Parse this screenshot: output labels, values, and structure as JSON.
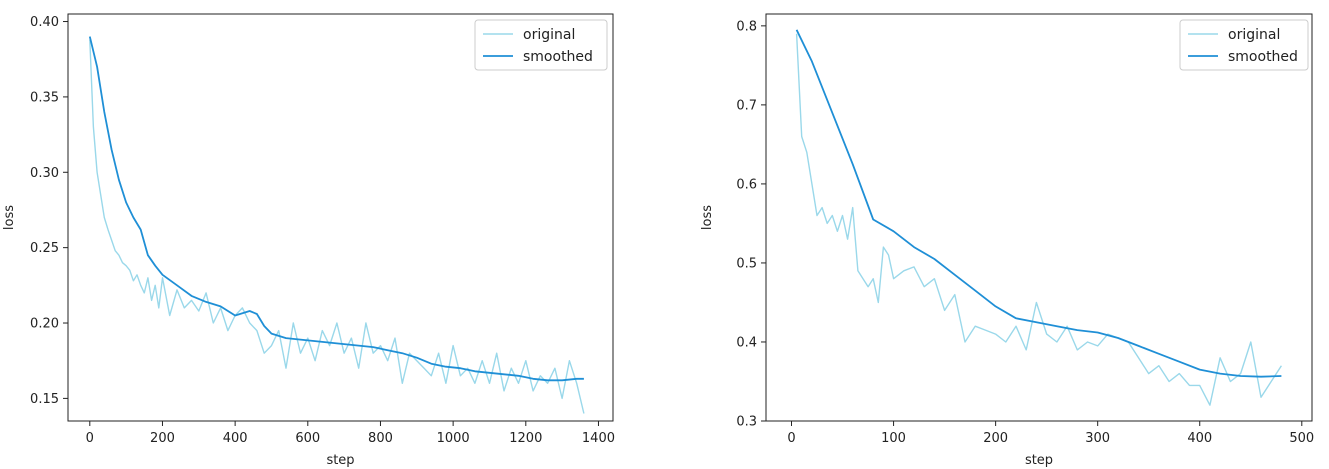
{
  "colors": {
    "original": "#9ad8ea",
    "smoothed": "#1f8fd6",
    "axis": "#222222"
  },
  "chart_data": [
    {
      "type": "line",
      "xlabel": "step",
      "ylabel": "loss",
      "xlim": [
        -60,
        1440
      ],
      "ylim": [
        0.135,
        0.405
      ],
      "xticks": [
        0,
        200,
        400,
        600,
        800,
        1000,
        1200,
        1400
      ],
      "yticks": [
        0.15,
        0.2,
        0.25,
        0.3,
        0.35,
        0.4
      ],
      "ytick_labels": [
        "0.15",
        "0.20",
        "0.25",
        "0.30",
        "0.35",
        "0.40"
      ],
      "grid": false,
      "legend": "top-right",
      "series": [
        {
          "name": "original",
          "color_key": "original",
          "x": [
            0,
            10,
            20,
            30,
            40,
            50,
            60,
            70,
            80,
            90,
            100,
            110,
            120,
            130,
            140,
            150,
            160,
            170,
            180,
            190,
            200,
            220,
            240,
            260,
            280,
            300,
            320,
            340,
            360,
            380,
            400,
            420,
            440,
            460,
            480,
            500,
            520,
            540,
            560,
            580,
            600,
            620,
            640,
            660,
            680,
            700,
            720,
            740,
            760,
            780,
            800,
            820,
            840,
            860,
            880,
            900,
            920,
            940,
            960,
            980,
            1000,
            1020,
            1040,
            1060,
            1080,
            1100,
            1120,
            1140,
            1160,
            1180,
            1200,
            1220,
            1240,
            1260,
            1280,
            1300,
            1320,
            1340,
            1360
          ],
          "values": [
            0.388,
            0.33,
            0.3,
            0.285,
            0.27,
            0.262,
            0.255,
            0.248,
            0.245,
            0.24,
            0.238,
            0.235,
            0.228,
            0.232,
            0.225,
            0.22,
            0.23,
            0.215,
            0.225,
            0.21,
            0.23,
            0.205,
            0.222,
            0.21,
            0.215,
            0.208,
            0.22,
            0.2,
            0.21,
            0.195,
            0.205,
            0.21,
            0.2,
            0.195,
            0.18,
            0.185,
            0.195,
            0.17,
            0.2,
            0.18,
            0.19,
            0.175,
            0.195,
            0.185,
            0.2,
            0.18,
            0.19,
            0.17,
            0.2,
            0.18,
            0.185,
            0.175,
            0.19,
            0.16,
            0.18,
            0.175,
            0.17,
            0.165,
            0.18,
            0.16,
            0.185,
            0.165,
            0.17,
            0.16,
            0.175,
            0.16,
            0.18,
            0.155,
            0.17,
            0.16,
            0.175,
            0.155,
            0.165,
            0.16,
            0.17,
            0.15,
            0.175,
            0.16,
            0.14
          ]
        },
        {
          "name": "smoothed",
          "color_key": "smoothed",
          "x": [
            0,
            20,
            40,
            60,
            80,
            100,
            120,
            140,
            160,
            180,
            200,
            240,
            280,
            320,
            360,
            400,
            440,
            460,
            480,
            500,
            540,
            580,
            620,
            660,
            700,
            740,
            780,
            820,
            860,
            900,
            940,
            980,
            1020,
            1060,
            1100,
            1140,
            1180,
            1220,
            1260,
            1300,
            1340,
            1360
          ],
          "values": [
            0.39,
            0.37,
            0.34,
            0.315,
            0.295,
            0.28,
            0.27,
            0.262,
            0.245,
            0.238,
            0.232,
            0.225,
            0.218,
            0.214,
            0.211,
            0.205,
            0.208,
            0.206,
            0.198,
            0.193,
            0.19,
            0.189,
            0.188,
            0.187,
            0.186,
            0.185,
            0.184,
            0.182,
            0.18,
            0.177,
            0.173,
            0.171,
            0.17,
            0.168,
            0.167,
            0.166,
            0.165,
            0.163,
            0.162,
            0.162,
            0.163,
            0.163
          ]
        }
      ]
    },
    {
      "type": "line",
      "xlabel": "step",
      "ylabel": "loss",
      "xlim": [
        -25,
        510
      ],
      "ylim": [
        0.3,
        0.815
      ],
      "xticks": [
        0,
        100,
        200,
        300,
        400,
        500
      ],
      "yticks": [
        0.3,
        0.4,
        0.5,
        0.6,
        0.7,
        0.8
      ],
      "ytick_labels": [
        "0.3",
        "0.4",
        "0.5",
        "0.6",
        "0.7",
        "0.8"
      ],
      "grid": false,
      "legend": "top-right",
      "series": [
        {
          "name": "original",
          "color_key": "original",
          "x": [
            5,
            10,
            15,
            20,
            25,
            30,
            35,
            40,
            45,
            50,
            55,
            60,
            65,
            70,
            75,
            80,
            85,
            90,
            95,
            100,
            110,
            120,
            130,
            140,
            150,
            160,
            170,
            180,
            190,
            200,
            210,
            220,
            230,
            240,
            250,
            260,
            270,
            280,
            290,
            300,
            310,
            320,
            330,
            340,
            350,
            360,
            370,
            380,
            390,
            400,
            410,
            420,
            430,
            440,
            450,
            460,
            470,
            480
          ],
          "values": [
            0.79,
            0.66,
            0.64,
            0.6,
            0.56,
            0.57,
            0.55,
            0.56,
            0.54,
            0.56,
            0.53,
            0.57,
            0.49,
            0.48,
            0.47,
            0.48,
            0.45,
            0.52,
            0.51,
            0.48,
            0.49,
            0.495,
            0.47,
            0.48,
            0.44,
            0.46,
            0.4,
            0.42,
            0.415,
            0.41,
            0.4,
            0.42,
            0.39,
            0.45,
            0.41,
            0.4,
            0.42,
            0.39,
            0.4,
            0.395,
            0.41,
            0.405,
            0.4,
            0.38,
            0.36,
            0.37,
            0.35,
            0.36,
            0.345,
            0.345,
            0.32,
            0.38,
            0.35,
            0.36,
            0.4,
            0.33,
            0.35,
            0.37
          ]
        },
        {
          "name": "smoothed",
          "color_key": "smoothed",
          "x": [
            5,
            20,
            40,
            60,
            80,
            100,
            120,
            140,
            160,
            180,
            200,
            220,
            240,
            260,
            280,
            300,
            320,
            340,
            360,
            380,
            400,
            420,
            440,
            460,
            480
          ],
          "values": [
            0.795,
            0.755,
            0.69,
            0.625,
            0.555,
            0.54,
            0.52,
            0.505,
            0.485,
            0.465,
            0.445,
            0.43,
            0.425,
            0.42,
            0.415,
            0.412,
            0.405,
            0.395,
            0.385,
            0.375,
            0.365,
            0.36,
            0.357,
            0.356,
            0.357
          ]
        }
      ]
    }
  ]
}
